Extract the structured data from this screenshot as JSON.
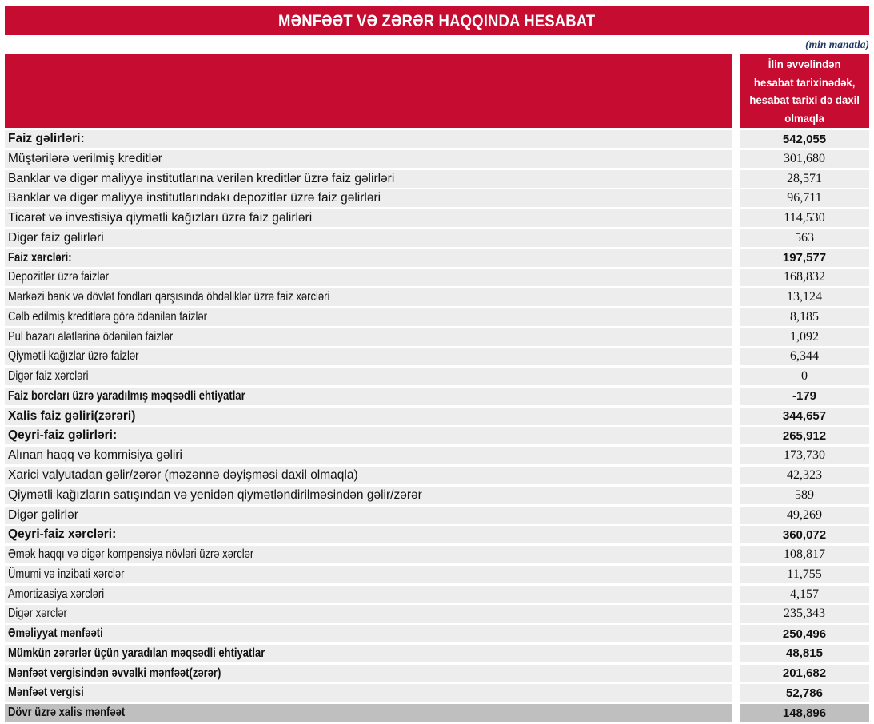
{
  "header": {
    "title": "MƏNFƏƏT VƏ ZƏRƏR HAQQINDA HESABAT",
    "unit_note": "(min manatla)"
  },
  "colors": {
    "accent_red": "#C60C30",
    "note_blue": "#1F3864",
    "row_bg": "#EDEDED",
    "total_row_bg": "#BFBFBF"
  },
  "table": {
    "value_column_header_lines": [
      "İlin əvvəlindən",
      "hesabat tarixinədək,",
      "hesabat tarixi də daxil",
      "olmaqla"
    ],
    "rows": [
      {
        "label": "Faiz gəlirləri:",
        "value": "542,055",
        "bold": true,
        "narrow": false,
        "total": false
      },
      {
        "label": "Müştərilərə verilmiş kreditlər",
        "value": "301,680",
        "bold": false,
        "narrow": false,
        "total": false
      },
      {
        "label": "Banklar və digər maliyyə institutlarına verilən kreditlər üzrə faiz gəlirləri",
        "value": "28,571",
        "bold": false,
        "narrow": false,
        "total": false
      },
      {
        "label": "Banklar və digər maliyyə institutlarındakı depozitlər üzrə faiz gəlirləri",
        "value": "96,711",
        "bold": false,
        "narrow": false,
        "total": false
      },
      {
        "label": "Ticarət və investisiya qiymətli kağızları üzrə faiz gəlirləri",
        "value": "114,530",
        "bold": false,
        "narrow": false,
        "total": false
      },
      {
        "label": "Digər faiz gəlirləri",
        "value": "563",
        "bold": false,
        "narrow": false,
        "total": false
      },
      {
        "label": "Faiz xərcləri:",
        "value": "197,577",
        "bold": true,
        "narrow": true,
        "total": false
      },
      {
        "label": "Depozitlər üzrə faizlər",
        "value": "168,832",
        "bold": false,
        "narrow": true,
        "total": false
      },
      {
        "label": "Mərkəzi bank və dövlət fondları qarşısında öhdəliklər üzrə faiz xərcləri",
        "value": "13,124",
        "bold": false,
        "narrow": true,
        "total": false
      },
      {
        "label": "Cəlb edilmiş kreditlərə görə ödənilən faizlər",
        "value": "8,185",
        "bold": false,
        "narrow": true,
        "total": false
      },
      {
        "label": "Pul bazarı alətlərinə ödənilən faizlər",
        "value": "1,092",
        "bold": false,
        "narrow": true,
        "total": false
      },
      {
        "label": "Qiymətli kağızlar üzrə faizlər",
        "value": "6,344",
        "bold": false,
        "narrow": true,
        "total": false
      },
      {
        "label": "Digər faiz xərcləri",
        "value": "0",
        "bold": false,
        "narrow": true,
        "total": false
      },
      {
        "label": "Faiz borcları üzrə yaradılmış məqsədli ehtiyatlar",
        "value": "-179",
        "bold": true,
        "narrow": true,
        "total": false
      },
      {
        "label": "Xalis faiz gəliri(zərəri)",
        "value": "344,657",
        "bold": true,
        "narrow": false,
        "total": false
      },
      {
        "label": "Qeyri-faiz gəlirləri:",
        "value": "265,912",
        "bold": true,
        "narrow": false,
        "total": false
      },
      {
        "label": "Alınan haqq və kommisiya gəliri",
        "value": "173,730",
        "bold": false,
        "narrow": false,
        "total": false
      },
      {
        "label": "Xarici valyutadan gəlir/zərər (məzənnə dəyişməsi daxil olmaqla)",
        "value": "42,323",
        "bold": false,
        "narrow": false,
        "total": false
      },
      {
        "label": " Qiymətli kağızların satışından və yenidən qiymətləndirilməsindən gəlir/zərər",
        "value": "589",
        "bold": false,
        "narrow": false,
        "total": false
      },
      {
        "label": "Digər gəlirlər",
        "value": "49,269",
        "bold": false,
        "narrow": false,
        "total": false
      },
      {
        "label": "Qeyri-faiz xərcləri:",
        "value": "360,072",
        "bold": true,
        "narrow": false,
        "total": false
      },
      {
        "label": "Əmək haqqı və digər kompensiya növləri üzrə xərclər",
        "value": "108,817",
        "bold": false,
        "narrow": true,
        "total": false
      },
      {
        "label": "Ümumi və inzibati xərclər",
        "value": "11,755",
        "bold": false,
        "narrow": true,
        "total": false
      },
      {
        "label": "Amortizasiya xərcləri",
        "value": "4,157",
        "bold": false,
        "narrow": true,
        "total": false
      },
      {
        "label": "Digər xərclər",
        "value": "235,343",
        "bold": false,
        "narrow": true,
        "total": false
      },
      {
        "label": "Əməliyyat mənfəəti",
        "value": "250,496",
        "bold": true,
        "narrow": true,
        "total": false
      },
      {
        "label": "Mümkün zərərlər üçün yaradılan məqsədli ehtiyatlar",
        "value": "48,815",
        "bold": true,
        "narrow": true,
        "total": false
      },
      {
        "label": "Mənfəət vergisindən əvvəlki mənfəət(zərər)",
        "value": "201,682",
        "bold": true,
        "narrow": true,
        "total": false
      },
      {
        "label": "Mənfəət vergisi",
        "value": "52,786",
        "bold": true,
        "narrow": true,
        "total": false
      },
      {
        "label": "Dövr üzrə xalis mənfəət",
        "value": "148,896",
        "bold": true,
        "narrow": true,
        "total": true
      }
    ]
  }
}
